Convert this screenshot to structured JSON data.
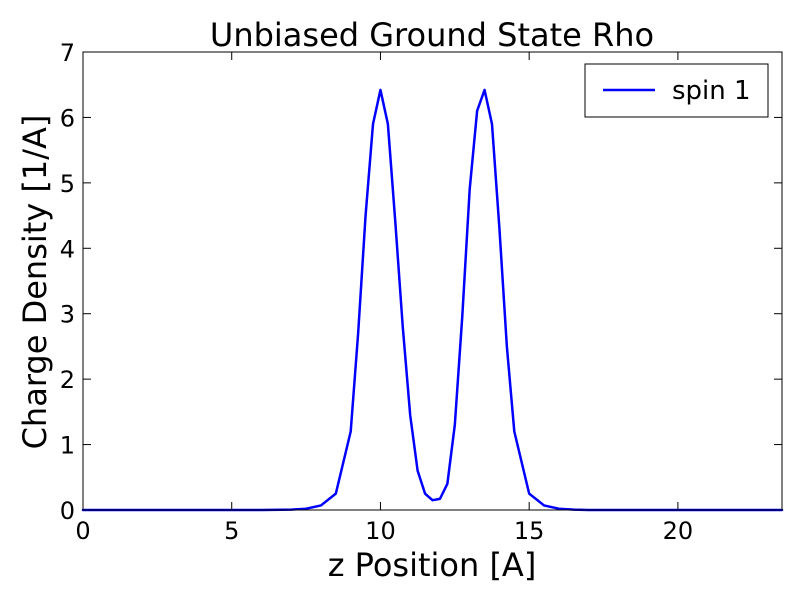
{
  "chart_data": {
    "type": "line",
    "title": "Unbiased Ground State Rho",
    "xlabel": "z Position [A]",
    "ylabel": "Charge Density [1/A]",
    "xlim": [
      0,
      23.5
    ],
    "ylim": [
      0,
      7
    ],
    "xticks": [
      0,
      5,
      10,
      15,
      20
    ],
    "xtick_labels": [
      "0",
      "5",
      "10",
      "15",
      "20"
    ],
    "yticks": [
      0,
      1,
      2,
      3,
      4,
      5,
      6,
      7
    ],
    "ytick_labels": [
      "0",
      "1",
      "2",
      "3",
      "4",
      "5",
      "6",
      "7"
    ],
    "grid": false,
    "legend_position": "top-right",
    "series": [
      {
        "name": "spin 1",
        "color": "#0000ff",
        "x": [
          0,
          2,
          4,
          6,
          7,
          7.5,
          8,
          8.5,
          9,
          9.25,
          9.5,
          9.75,
          10,
          10.25,
          10.5,
          10.75,
          11,
          11.25,
          11.5,
          11.75,
          12,
          12.25,
          12.5,
          12.75,
          13,
          13.25,
          13.5,
          13.75,
          14,
          14.25,
          14.5,
          15,
          15.5,
          16,
          16.5,
          17,
          18,
          20,
          22,
          23.5
        ],
        "y": [
          0,
          0,
          0,
          0,
          0.005,
          0.02,
          0.07,
          0.25,
          1.2,
          2.7,
          4.5,
          5.9,
          6.42,
          5.9,
          4.4,
          2.8,
          1.45,
          0.6,
          0.25,
          0.15,
          0.17,
          0.4,
          1.3,
          2.95,
          4.9,
          6.1,
          6.42,
          5.9,
          4.3,
          2.5,
          1.2,
          0.25,
          0.07,
          0.02,
          0.005,
          0,
          0,
          0,
          0,
          0
        ]
      }
    ]
  }
}
